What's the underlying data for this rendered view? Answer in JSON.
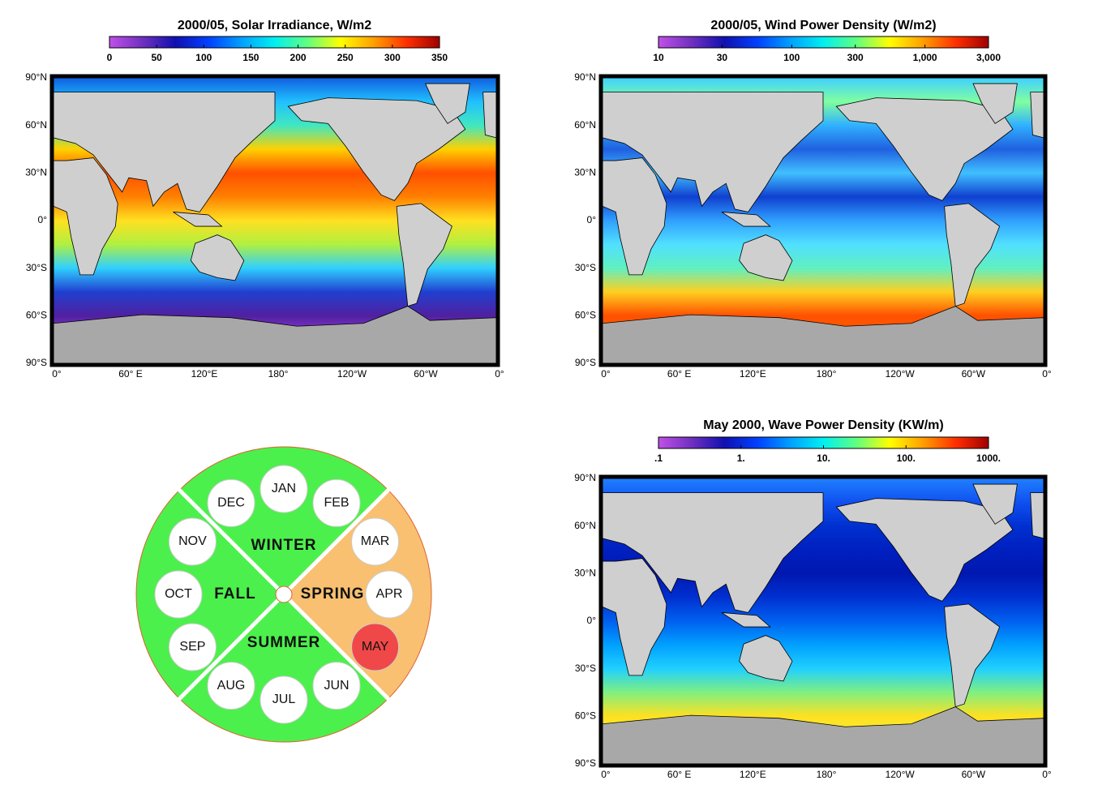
{
  "maps": [
    {
      "title": "2000/05, Solar Irradiance, W/m2",
      "colorbar": {
        "lim": [
          0,
          350
        ],
        "log_scale": false,
        "ticks": [
          0,
          50,
          100,
          150,
          200,
          250,
          300,
          350
        ]
      },
      "field_colors": [
        "#1060e0",
        "#20c0ff",
        "#40e8c0",
        "#ffd000",
        "#ff5000",
        "#ff8000",
        "#ffe020",
        "#b0f040",
        "#30d0ff",
        "#2040d0",
        "#5020a0",
        "#a040e0",
        "#a040e0"
      ]
    },
    {
      "title": "2000/05, Wind Power Density (W/m2)",
      "colorbar": {
        "lim": [
          10,
          3000
        ],
        "log_scale": true,
        "ticks": [
          10,
          30,
          100,
          300,
          {
            "value": 1000,
            "label": "1,000"
          },
          {
            "value": 3000,
            "label": "3,000"
          }
        ]
      },
      "field_colors": [
        "#40d0ff",
        "#80ffa0",
        "#30b0ff",
        "#2060e0",
        "#40c0ff",
        "#1040d0",
        "#30a0ff",
        "#50e0ff",
        "#60f0c0",
        "#ffd020",
        "#ff5000",
        "#ff6000",
        "#ffa020"
      ]
    },
    {
      "title": "May 2000, Wave Power Density (KW/m)",
      "colorbar": {
        "lim": [
          0.1,
          1000
        ],
        "log_scale": true,
        "ticks": [
          {
            "value": 0.1,
            "label": ".1"
          },
          {
            "value": 1,
            "label": "1."
          },
          {
            "value": 10,
            "label": "10."
          },
          {
            "value": 100,
            "label": "100."
          },
          {
            "value": 1000,
            "label": "1000."
          }
        ]
      },
      "field_colors": [
        "#2080ff",
        "#1050f0",
        "#0030d0",
        "#0020c0",
        "#0018b0",
        "#0030d0",
        "#0060f0",
        "#00a0ff",
        "#20d0ff",
        "#80f080",
        "#ffe020",
        "#f0f040",
        "#60e0c0"
      ]
    }
  ],
  "colorbar_colors": [
    "#c050e8",
    "#7030c0",
    "#1010b0",
    "#0040ff",
    "#00a0ff",
    "#00f0f0",
    "#60ff80",
    "#ffff00",
    "#ffa000",
    "#ff3000",
    "#a00000"
  ],
  "map_axes": {
    "lat_labels": [
      "90°N",
      "60°N",
      "30°N",
      "0°",
      "30°S",
      "60°S",
      "90°S"
    ],
    "lon_labels": [
      "0°",
      "60° E",
      "120°E",
      "180°",
      "120°W",
      "60°W",
      "0°"
    ]
  },
  "wheel": {
    "selected_month": "MAY",
    "selected_color": "#f04848",
    "seasons": [
      {
        "name": "WINTER",
        "color": "#4cf04c",
        "months": [
          "DEC",
          "JAN",
          "FEB"
        ]
      },
      {
        "name": "SPRING",
        "color": "#f8c070",
        "months": [
          "MAR",
          "APR",
          "MAY"
        ]
      },
      {
        "name": "SUMMER",
        "color": "#4cf04c",
        "months": [
          "JUN",
          "JUL",
          "AUG"
        ]
      },
      {
        "name": "FALL",
        "color": "#4cf04c",
        "months": [
          "SEP",
          "OCT",
          "NOV"
        ]
      }
    ]
  }
}
